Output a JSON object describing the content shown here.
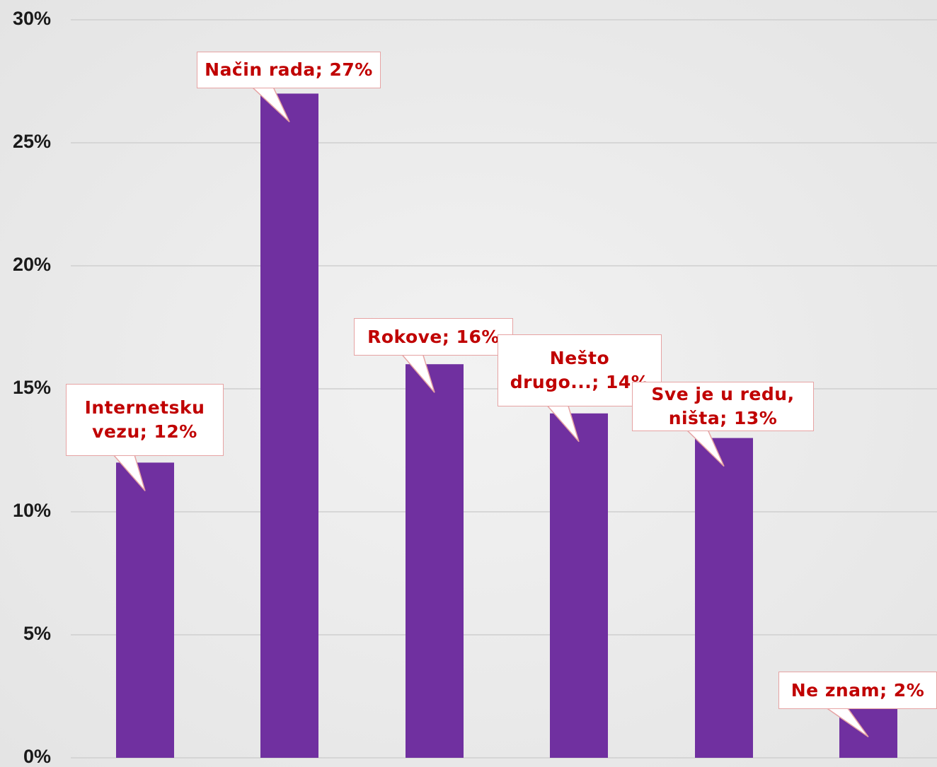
{
  "chart_data": {
    "type": "bar",
    "values": [
      12,
      27,
      16,
      14,
      13,
      2
    ],
    "value_labels": [
      "Internetsku vezu; 12%",
      "Način rada; 27%",
      "Rokove; 16%",
      "Nešto drugo...; 14%",
      "Sve je u redu, ništa; 13%",
      "Ne znam; 2%"
    ],
    "color": "#7030a0",
    "ylim": [
      0,
      30
    ],
    "yticks": [
      {
        "value": 0,
        "label": "0%"
      },
      {
        "value": 5,
        "label": "5%"
      },
      {
        "value": 10,
        "label": "10%"
      },
      {
        "value": 15,
        "label": "15%"
      },
      {
        "value": 20,
        "label": "20%"
      },
      {
        "value": 25,
        "label": "25%"
      },
      {
        "value": 30,
        "label": "30%"
      }
    ],
    "grid": true
  }
}
